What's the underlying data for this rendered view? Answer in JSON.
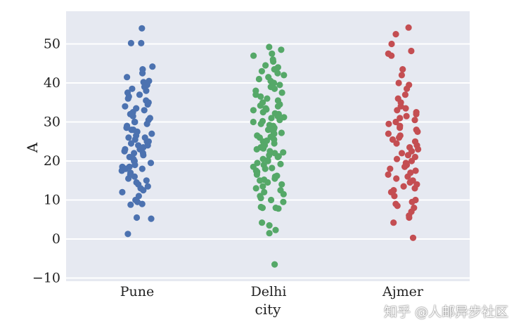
{
  "chart_data": {
    "type": "scatter",
    "subtype": "strip",
    "title": "",
    "xlabel": "city",
    "ylabel": "A",
    "categories": [
      "Pune",
      "Delhi",
      "Ajmer"
    ],
    "ylim": [
      -12,
      57
    ],
    "yticks": [
      -10,
      0,
      10,
      20,
      30,
      40,
      50
    ],
    "grid": true,
    "background": "#e6e9f1",
    "series": [
      {
        "category": "Pune",
        "color": "#4c72b0",
        "values": [
          54,
          50.2,
          50.2,
          44.2,
          43.5,
          42.5,
          41.5,
          40.5,
          40.2,
          39.5,
          39,
          38.5,
          38,
          37.5,
          37,
          36.5,
          36,
          35.5,
          35,
          34.5,
          34,
          33.5,
          33,
          32.5,
          32,
          31.5,
          31,
          30.5,
          30,
          30,
          29.5,
          29,
          28.5,
          28,
          28,
          27.5,
          27,
          26.5,
          26,
          26,
          25.5,
          25,
          25,
          24.5,
          24,
          24,
          23.5,
          23,
          23,
          22.5,
          22,
          22,
          21.5,
          21,
          20.5,
          20,
          20,
          19.5,
          19,
          18.5,
          18.5,
          18,
          18,
          17.5,
          17,
          16.5,
          16,
          15.5,
          15,
          14.5,
          14,
          13.5,
          13,
          12.5,
          12,
          11,
          10,
          9.5,
          9,
          8.8,
          5.5,
          5.2,
          1.3
        ]
      },
      {
        "category": "Delhi",
        "color": "#55a868",
        "values": [
          49.2,
          48.5,
          47.5,
          47,
          46,
          45.5,
          44.5,
          44,
          43.5,
          43,
          42.5,
          42,
          41.5,
          41,
          40.5,
          40,
          39.5,
          39,
          38.5,
          38,
          37.5,
          37,
          36.5,
          36,
          35.5,
          35,
          34.5,
          34.2,
          34,
          33.5,
          33.2,
          33,
          32.5,
          32.2,
          32,
          31.5,
          31.2,
          31,
          30.5,
          30.2,
          30,
          29.5,
          29.2,
          29,
          28.5,
          28.2,
          28,
          27.5,
          27.2,
          27,
          26.5,
          26.2,
          26,
          25.5,
          25.2,
          25,
          24.5,
          24.2,
          24,
          23.5,
          23.2,
          23,
          22.5,
          22.2,
          22,
          21.5,
          21.2,
          21,
          20.5,
          20.2,
          20,
          19.5,
          19.2,
          19,
          18.5,
          18.2,
          18,
          17.5,
          17.2,
          17,
          16.5,
          16.2,
          16,
          15.5,
          15.2,
          15,
          14.5,
          14,
          13.5,
          13,
          12.5,
          12,
          11.5,
          11,
          10.5,
          10,
          9.5,
          8.2,
          8,
          8,
          7.8,
          4.2,
          3.5,
          2.3,
          1.5,
          -6.5
        ]
      },
      {
        "category": "Ajmer",
        "color": "#c44e52",
        "values": [
          54.2,
          52.5,
          50,
          48.2,
          47.5,
          47,
          43.5,
          42,
          40,
          39.5,
          38.5,
          37,
          36,
          35,
          34,
          33.5,
          33,
          32.5,
          32,
          31.5,
          31,
          30.5,
          30,
          29.5,
          29,
          28.5,
          28,
          27.5,
          27,
          26.5,
          26,
          25.5,
          25,
          24.5,
          24,
          23.5,
          23,
          22.5,
          22,
          21.5,
          21,
          20.5,
          20,
          19.5,
          19,
          18.5,
          18,
          17.5,
          17,
          16.5,
          16,
          15.5,
          15,
          14.5,
          14,
          13.5,
          13,
          12.5,
          12,
          11,
          10,
          9.5,
          9,
          8.5,
          8,
          7,
          6,
          5.5,
          4.2,
          0.3
        ]
      }
    ]
  },
  "watermark": "知乎 @人邮异步社区"
}
